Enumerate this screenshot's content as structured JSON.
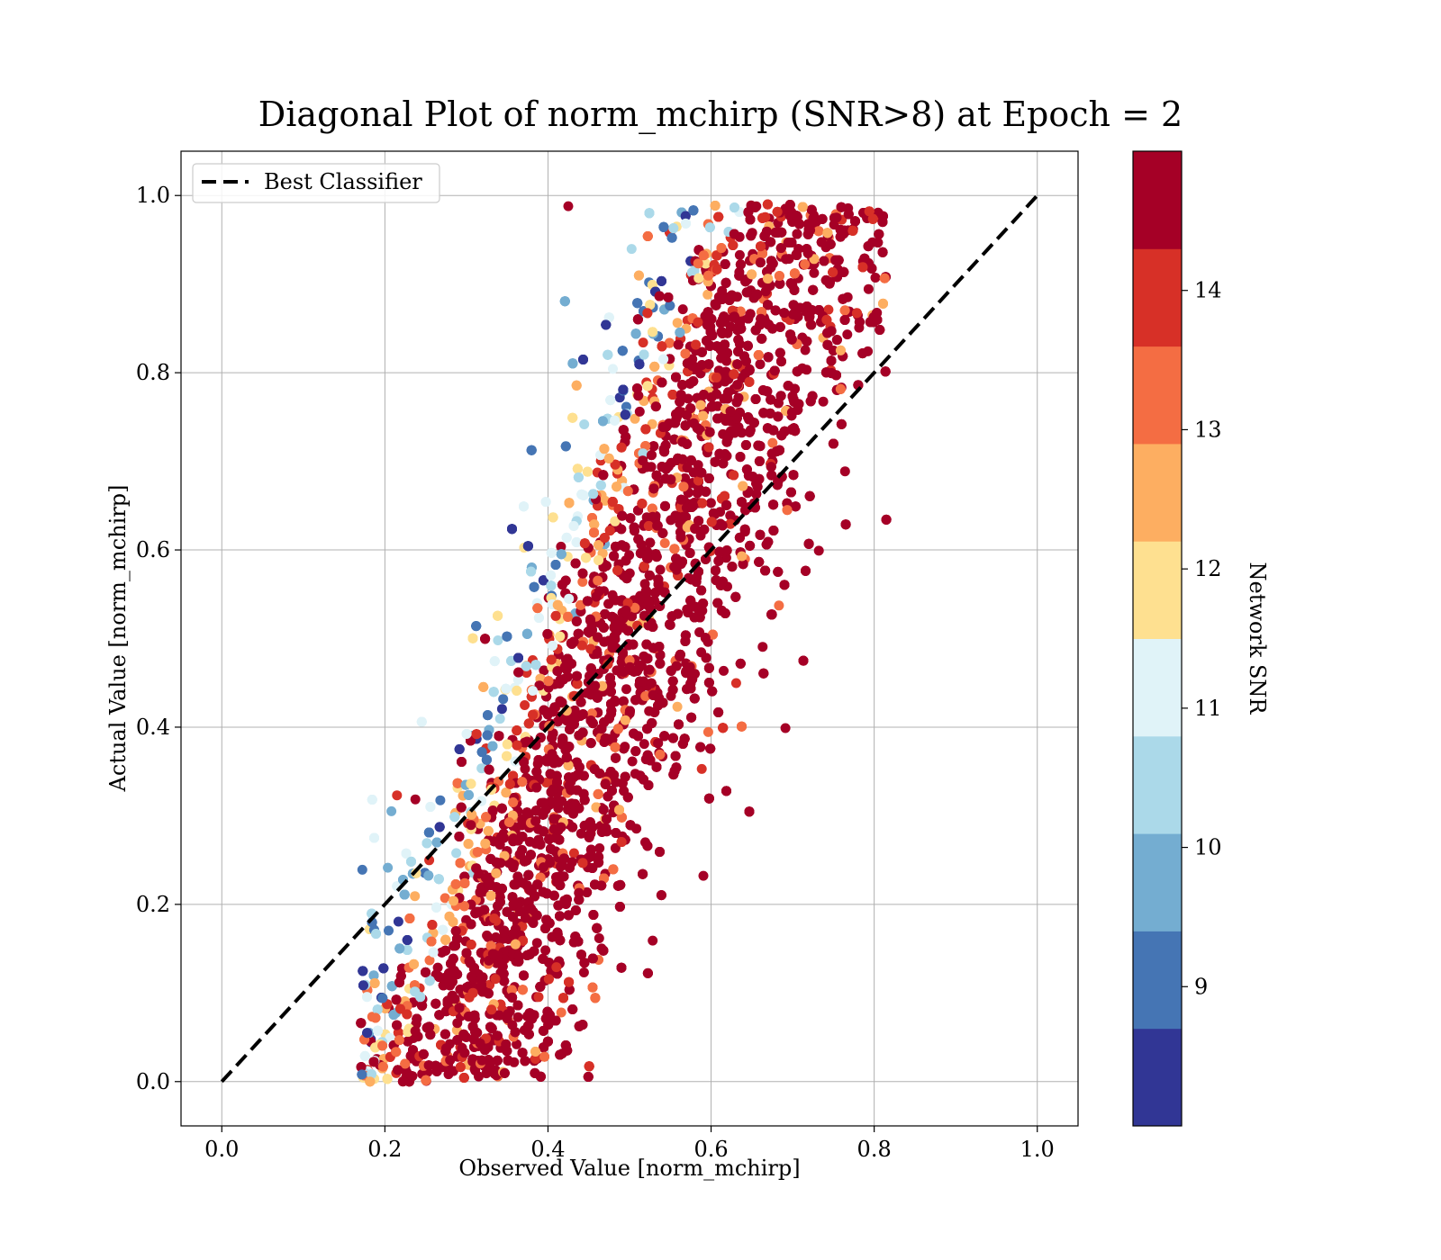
{
  "chart_data": {
    "type": "scatter",
    "title": "Diagonal Plot of norm_mchirp (SNR>8) at Epoch = 2",
    "xlabel": "Observed Value [norm_mchirp]",
    "ylabel": "Actual Value [norm_mchirp]",
    "xlim": [
      -0.05,
      1.05
    ],
    "ylim": [
      -0.05,
      1.05
    ],
    "xticks": [
      "0.0",
      "0.2",
      "0.4",
      "0.6",
      "0.8",
      "1.0"
    ],
    "yticks": [
      "0.0",
      "0.2",
      "0.4",
      "0.6",
      "0.8",
      "1.0"
    ],
    "grid": true,
    "legend": {
      "position": "top-left",
      "entries": [
        "Best Classifier"
      ]
    },
    "reference_line": {
      "name": "Best Classifier",
      "x": [
        0.0,
        1.0
      ],
      "y": [
        0.0,
        1.0
      ],
      "style": "dashed",
      "color": "#000000"
    },
    "scatter_description": {
      "approx_points": 9000,
      "x_extent": [
        0.17,
        0.82
      ],
      "y_extent": [
        0.0,
        0.99
      ],
      "relation": "y ≈ 2.1·(x − 0.44) + 0.45 band, dense core",
      "color_by": "Network SNR"
    },
    "colorbar": {
      "label": "Network SNR",
      "range": [
        8,
        15
      ],
      "levels": 10,
      "ticks": [
        "9",
        "10",
        "11",
        "12",
        "13",
        "14"
      ],
      "tick_values": [
        9,
        10,
        11,
        12,
        13,
        14
      ],
      "colors": [
        "#313695",
        "#4575b4",
        "#74add1",
        "#abd9e9",
        "#e0f3f8",
        "#fee090",
        "#fdae61",
        "#f46d43",
        "#d73027",
        "#a50026"
      ]
    }
  }
}
